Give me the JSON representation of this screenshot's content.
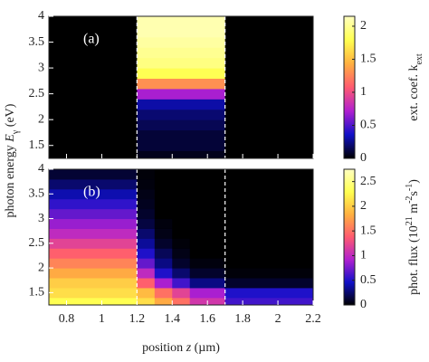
{
  "chart_data": [
    {
      "type": "heatmap",
      "panel_label": "(a)",
      "x_edges": [
        0.7,
        1.2,
        1.7,
        2.2
      ],
      "y_edges": [
        1.25,
        1.4,
        1.6,
        1.8,
        2.0,
        2.2,
        2.4,
        2.6,
        2.8,
        3.0,
        3.2,
        3.4,
        3.6,
        3.8,
        4.0
      ],
      "values": [
        [
          0,
          0.05,
          0
        ],
        [
          0,
          0.1,
          0
        ],
        [
          0,
          0.1,
          0
        ],
        [
          0,
          0.15,
          0
        ],
        [
          0,
          0.2,
          0
        ],
        [
          0,
          0.3,
          0
        ],
        [
          0,
          0.7,
          0
        ],
        [
          0,
          1.3,
          0
        ],
        [
          0,
          1.8,
          0
        ],
        [
          0,
          1.95,
          0
        ],
        [
          0,
          2.0,
          0
        ],
        [
          0,
          2.05,
          0
        ],
        [
          0,
          2.1,
          0
        ],
        [
          0,
          2.1,
          0
        ]
      ],
      "xlim": [
        0.7,
        2.2
      ],
      "ylim": [
        1.25,
        4
      ],
      "yticks": [
        {
          "value": 1.5,
          "label": "1.5"
        },
        2,
        {
          "value": 2.5,
          "label": "2.5"
        },
        3,
        {
          "value": 3.5,
          "label": "3.5"
        },
        4
      ],
      "zlim": [
        0,
        2.15
      ],
      "zticks": [
        0,
        {
          "value": 0.5,
          "label": "0.5"
        },
        1,
        {
          "value": 1.5,
          "label": "1.5"
        },
        2
      ],
      "colorbar_label": [
        {
          "text": "ext. coef. k",
          "pos": "normal"
        },
        {
          "text": "ext",
          "pos": "sub"
        }
      ],
      "boundaries": [
        1.2,
        1.7
      ],
      "boundary_color": "#ffffff",
      "colormap": [
        "#000000",
        "#1010c8",
        "#b020d0",
        "#ff5a70",
        "#ffb040",
        "#ffff50",
        "#ffffc0"
      ]
    },
    {
      "type": "heatmap",
      "panel_label": "(b)",
      "x_edges": [
        0.7,
        1.2,
        1.3,
        1.4,
        1.5,
        1.7,
        2.2
      ],
      "y_edges": [
        1.25,
        1.4,
        1.6,
        1.8,
        2.0,
        2.2,
        2.4,
        2.6,
        2.8,
        3.0,
        3.2,
        3.4,
        3.6,
        3.8,
        4.0
      ],
      "values": [
        [
          2.3,
          2.1,
          1.8,
          1.5,
          1.1,
          0.6
        ],
        [
          2.1,
          1.9,
          1.5,
          1.2,
          0.9,
          0.5
        ],
        [
          2.0,
          1.4,
          0.9,
          0.6,
          0.3,
          0.1
        ],
        [
          1.8,
          1.0,
          0.5,
          0.25,
          0.1,
          0.02
        ],
        [
          1.6,
          0.7,
          0.3,
          0.1,
          0.03,
          0
        ],
        [
          1.4,
          0.5,
          0.2,
          0.05,
          0,
          0
        ],
        [
          1.2,
          0.35,
          0.1,
          0.02,
          0,
          0
        ],
        [
          1.0,
          0.25,
          0.05,
          0,
          0,
          0
        ],
        [
          0.85,
          0.15,
          0.03,
          0,
          0,
          0
        ],
        [
          0.7,
          0.1,
          0,
          0,
          0,
          0
        ],
        [
          0.55,
          0.07,
          0,
          0,
          0,
          0
        ],
        [
          0.4,
          0.05,
          0,
          0,
          0,
          0
        ],
        [
          0.25,
          0.03,
          0,
          0,
          0,
          0
        ],
        [
          0.12,
          0.02,
          0,
          0,
          0,
          0
        ]
      ],
      "xlim": [
        0.7,
        2.2
      ],
      "ylim": [
        1.25,
        4
      ],
      "xticks": [
        {
          "value": 0.8,
          "label": "0.8"
        },
        1,
        {
          "value": 1.2,
          "label": "1.2"
        },
        {
          "value": 1.4,
          "label": "1.4"
        },
        {
          "value": 1.6,
          "label": "1.6"
        },
        {
          "value": 1.8,
          "label": "1.8"
        },
        2,
        {
          "value": 2.2,
          "label": "2.2"
        }
      ],
      "yticks": [
        {
          "value": 1.5,
          "label": "1.5"
        },
        2,
        {
          "value": 2.5,
          "label": "2.5"
        },
        3,
        {
          "value": 3.5,
          "label": "3.5"
        },
        4
      ],
      "zlim": [
        0,
        2.75
      ],
      "zticks": [
        0,
        {
          "value": 0.5,
          "label": "0.5"
        },
        1,
        {
          "value": 1.5,
          "label": "1.5"
        },
        2,
        {
          "value": 2.5,
          "label": "2.5"
        }
      ],
      "colorbar_label": [
        {
          "text": "phot. flux (10",
          "pos": "normal"
        },
        {
          "text": "21",
          "pos": "sup"
        },
        {
          "text": " m",
          "pos": "normal"
        },
        {
          "text": "-2",
          "pos": "sup"
        },
        {
          "text": "s",
          "pos": "normal"
        },
        {
          "text": "-1",
          "pos": "sup"
        },
        {
          "text": ")",
          "pos": "normal"
        }
      ],
      "boundaries": [
        1.2,
        1.7
      ],
      "boundary_color": "#ffffff",
      "colormap": [
        "#000000",
        "#1010c8",
        "#b020d0",
        "#ff5a70",
        "#ffb040",
        "#ffff50",
        "#ffffc0"
      ],
      "xlabel": [
        {
          "text": "position ",
          "pos": "normal"
        },
        {
          "text": "z",
          "pos": "italic"
        },
        {
          "text": " (µm)",
          "pos": "normal"
        }
      ],
      "ylabel": [
        {
          "text": "photon energy  ",
          "pos": "normal"
        },
        {
          "text": "E",
          "pos": "italic"
        },
        {
          "text": "γ",
          "pos": "sub"
        },
        {
          "text": " (eV)",
          "pos": "normal"
        }
      ]
    }
  ]
}
